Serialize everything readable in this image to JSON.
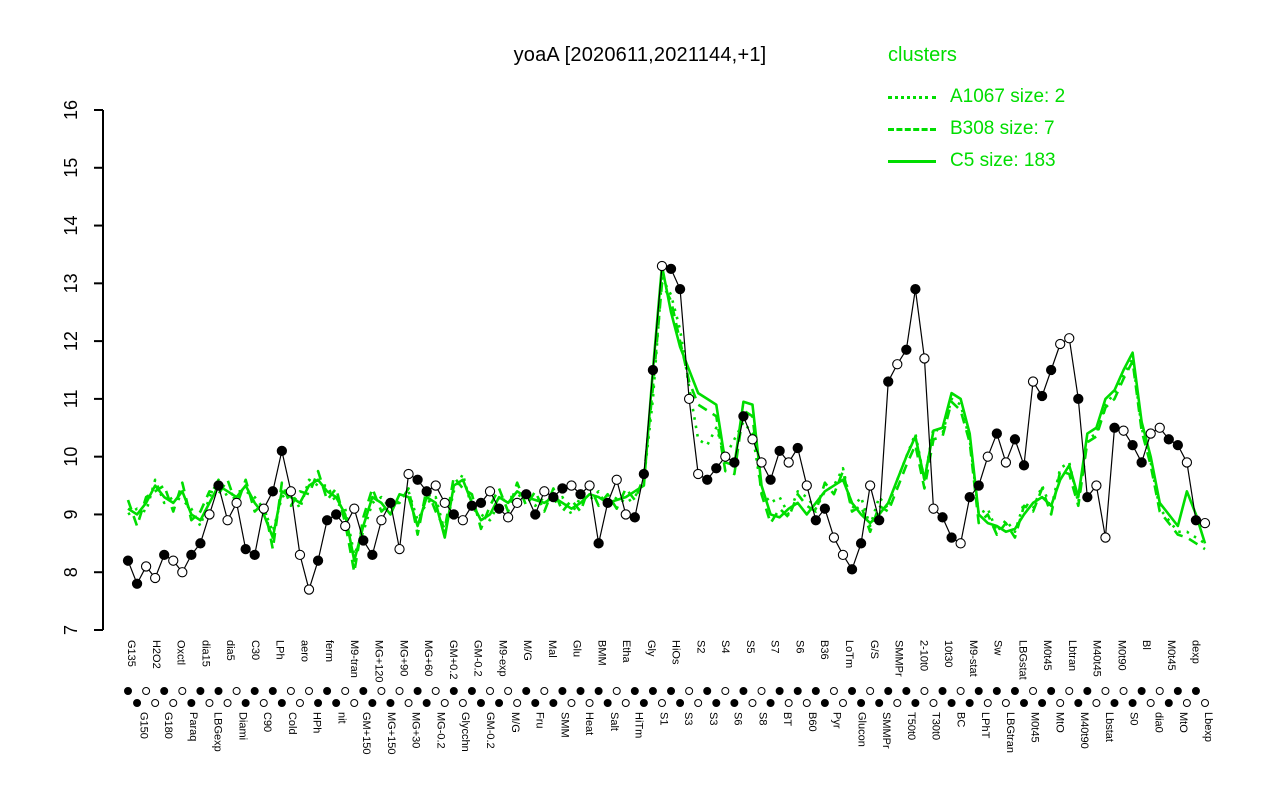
{
  "title": "yoaA [2020611,2021144,+1]",
  "accent_color": "#00dd00",
  "legend": {
    "title": "clusters",
    "color": "#00dd00",
    "entries": [
      {
        "label": "A1067 size: 2",
        "style": "dotted"
      },
      {
        "label": "B308 size: 7",
        "style": "dashed"
      },
      {
        "label": "C5 size: 183",
        "style": "solid"
      }
    ]
  },
  "chart_data": {
    "type": "line",
    "title": "yoaA [2020611,2021144,+1]",
    "ylabel": "",
    "xlabel": "",
    "ylim": [
      7,
      16
    ],
    "yticks": [
      7,
      8,
      9,
      10,
      11,
      12,
      13,
      14,
      15,
      16
    ],
    "grid": false,
    "legend_position": "top-right",
    "x_labels_row1": [
      "G135",
      "H2O2",
      "Oxctl",
      "dia15",
      "dia5",
      "C30",
      "LPh",
      "aero",
      "ferm",
      "M9-tran",
      "MG+120",
      "MG+90",
      "MG+60",
      "GM+0.2",
      "GM-0.2",
      "M9-exp",
      "M/G",
      "Mal",
      "Glu",
      "BMM",
      "Etha",
      "Gly",
      "HiOs",
      "S2",
      "S4",
      "S5",
      "S7",
      "S6",
      "B36",
      "LoTm",
      "G/S",
      "SMMPr",
      "2-10t0",
      "10t30",
      "M9-stat",
      "Sw",
      "LBGstat",
      "M0t45",
      "Lbtran",
      "M40t45",
      "M0t90",
      "Bl",
      "M0t45",
      "dexp"
    ],
    "x_labels_row2": [
      "G150",
      "G180",
      "Paraq",
      "LBGexp",
      "Diami",
      "C90",
      "Cold",
      "HPh",
      "nit",
      "GM+150",
      "MG+150",
      "MG+30",
      "MG-0.2",
      "Glycchn",
      "GM-0.2",
      "M/G",
      "Fru",
      "SMM",
      "Heat",
      "Salt",
      "HiTm",
      "S1",
      "S3",
      "S3",
      "S6",
      "S8",
      "BT",
      "B60",
      "Pyr",
      "Glucon",
      "SMMPr",
      "T50t0",
      "T30t0",
      "BC",
      "LPhT",
      "LBGtran",
      "M0t45",
      "MtO",
      "M40t90",
      "Lbstat",
      "S0",
      "dia0",
      "MtO",
      "Lbexp"
    ],
    "series": [
      {
        "name": "A1067",
        "style": "dotted",
        "color": "#00dd00",
        "width": 2.6,
        "values": [
          9.0,
          9.1,
          9.05,
          9.6,
          9.2,
          9.3,
          9.25,
          9.1,
          8.8,
          9.3,
          9.6,
          9.3,
          9.4,
          9.4,
          9.3,
          9.1,
          8.7,
          9.3,
          9.4,
          9.1,
          9.6,
          9.5,
          9.5,
          9.2,
          9.1,
          8.3,
          8.7,
          9.2,
          9.3,
          9.1,
          9.25,
          9.4,
          8.9,
          9.2,
          9.3,
          8.7,
          9.4,
          9.7,
          9.1,
          9.0,
          8.9,
          9.2,
          9.3,
          9.3,
          9.4,
          9.15,
          9.3,
          9.2,
          9.3,
          9.0,
          9.3,
          9.25,
          9.4,
          9.1,
          9.3,
          9.2,
          9.3,
          9.6,
          11.0,
          13.1,
          12.8,
          12.2,
          11.2,
          10.3,
          10.2,
          10.5,
          10.0,
          10.3,
          10.6,
          10.4,
          9.4,
          9.2,
          9.3,
          9.0,
          9.4,
          9.3,
          9.1,
          9.4,
          9.5,
          9.8,
          9.1,
          9.3,
          8.8,
          9.3,
          9.1,
          9.6,
          10.0,
          10.4,
          9.6,
          10.5,
          10.4,
          11.0,
          10.9,
          10.3,
          9.0,
          9.1,
          8.7,
          8.9,
          8.7,
          9.2,
          9.1,
          9.5,
          9.1,
          9.8,
          9.9,
          9.2,
          10.3,
          10.4,
          10.9,
          11.1,
          11.4,
          11.7,
          10.5,
          9.9,
          9.1,
          8.9,
          8.7,
          8.7,
          8.6,
          8.5
        ]
      },
      {
        "name": "B308",
        "style": "dashed",
        "color": "#00dd00",
        "width": 2.6,
        "values": [
          9.25,
          8.8,
          9.3,
          9.4,
          9.5,
          9.05,
          9.55,
          8.9,
          9.05,
          9.4,
          9.35,
          9.6,
          9.15,
          9.6,
          9.05,
          9.2,
          8.4,
          9.55,
          9.15,
          9.4,
          9.35,
          9.75,
          9.25,
          9.45,
          8.85,
          8.0,
          8.95,
          9.45,
          9.05,
          9.2,
          9.2,
          9.45,
          8.65,
          9.45,
          9.05,
          8.75,
          9.65,
          9.45,
          9.35,
          8.75,
          9.15,
          9.45,
          9.05,
          9.55,
          9.15,
          9.4,
          9.05,
          9.45,
          9.05,
          9.25,
          9.05,
          9.5,
          9.15,
          9.35,
          9.1,
          9.45,
          9.25,
          9.65,
          11.2,
          13.0,
          12.7,
          12.0,
          11.3,
          10.9,
          10.8,
          10.7,
          9.75,
          9.7,
          10.8,
          10.7,
          9.35,
          8.85,
          9.1,
          8.95,
          9.35,
          9.15,
          9.05,
          9.55,
          9.35,
          9.75,
          9.05,
          9.15,
          8.7,
          9.15,
          9.05,
          9.45,
          9.85,
          10.2,
          9.45,
          10.3,
          10.35,
          10.95,
          10.8,
          10.25,
          8.85,
          9.0,
          8.65,
          8.85,
          8.6,
          9.15,
          9.05,
          9.45,
          9.0,
          9.75,
          9.7,
          9.15,
          10.25,
          10.35,
          10.85,
          11.0,
          11.35,
          11.65,
          10.45,
          9.85,
          9.05,
          8.85,
          8.65,
          8.6,
          8.5,
          8.4
        ]
      },
      {
        "name": "C5",
        "style": "solid",
        "color": "#00dd00",
        "width": 2.6,
        "values": [
          9.1,
          9.0,
          9.2,
          9.5,
          9.3,
          9.2,
          9.4,
          9.0,
          8.9,
          9.2,
          9.5,
          9.4,
          9.3,
          9.5,
          9.2,
          9.0,
          8.6,
          9.4,
          9.3,
          9.2,
          9.5,
          9.6,
          9.4,
          9.3,
          9.0,
          8.2,
          8.8,
          9.3,
          9.2,
          9.0,
          9.35,
          9.3,
          8.8,
          9.3,
          9.2,
          8.6,
          9.5,
          9.6,
          9.2,
          8.9,
          9.0,
          9.3,
          9.2,
          9.4,
          9.3,
          9.25,
          9.2,
          9.3,
          9.2,
          9.1,
          9.2,
          9.35,
          9.3,
          9.2,
          9.25,
          9.3,
          9.4,
          9.5,
          11.5,
          13.3,
          12.5,
          11.9,
          11.5,
          11.1,
          11.0,
          10.9,
          9.9,
          9.85,
          10.95,
          10.9,
          9.5,
          9.0,
          8.95,
          9.1,
          9.2,
          9.0,
          9.2,
          9.4,
          9.5,
          9.6,
          9.2,
          9.0,
          8.85,
          9.0,
          9.2,
          9.6,
          10.0,
          10.35,
          9.6,
          10.45,
          10.5,
          11.1,
          11.0,
          10.4,
          9.0,
          8.85,
          8.8,
          8.7,
          8.75,
          9.0,
          9.2,
          9.3,
          9.15,
          9.6,
          9.85,
          9.3,
          10.4,
          10.5,
          11.0,
          11.15,
          11.5,
          11.8,
          10.6,
          10.0,
          9.2,
          9.0,
          8.8,
          9.4,
          9.0,
          8.5
        ]
      },
      {
        "name": "yoaA",
        "style": "solid",
        "color": "#000000",
        "width": 1.2,
        "markers": true,
        "fills": "110010011010011011000111001101001100101101001101101011001110110011011001101011001101101100110110101101100110010110011010",
        "values": [
          8.2,
          7.8,
          8.1,
          7.9,
          8.3,
          8.2,
          8.0,
          8.3,
          8.5,
          9.0,
          9.5,
          8.9,
          9.2,
          8.4,
          8.3,
          9.1,
          9.4,
          10.1,
          9.4,
          8.3,
          7.7,
          8.2,
          8.9,
          9.0,
          8.8,
          9.1,
          8.55,
          8.3,
          8.9,
          9.2,
          8.4,
          9.7,
          9.6,
          9.4,
          9.5,
          9.2,
          9.0,
          8.9,
          9.15,
          9.2,
          9.4,
          9.1,
          8.95,
          9.2,
          9.35,
          9.0,
          9.4,
          9.3,
          9.45,
          9.5,
          9.35,
          9.5,
          8.5,
          9.2,
          9.6,
          9.0,
          8.95,
          9.7,
          11.5,
          13.3,
          13.25,
          12.9,
          11.0,
          9.7,
          9.6,
          9.8,
          10.0,
          9.9,
          10.7,
          10.3,
          9.9,
          9.6,
          10.1,
          9.9,
          10.15,
          9.5,
          8.9,
          9.1,
          8.6,
          8.3,
          8.05,
          8.5,
          9.5,
          8.9,
          11.3,
          11.6,
          11.85,
          12.9,
          11.7,
          9.1,
          8.95,
          8.6,
          8.5,
          9.3,
          9.5,
          10.0,
          10.4,
          9.9,
          10.3,
          9.85,
          11.3,
          11.05,
          11.5,
          11.95,
          12.05,
          11.0,
          9.3,
          9.5,
          8.6,
          10.5,
          10.45,
          10.2,
          9.9,
          10.4,
          10.5,
          10.3,
          10.2,
          9.9,
          8.9,
          8.85
        ]
      }
    ]
  }
}
